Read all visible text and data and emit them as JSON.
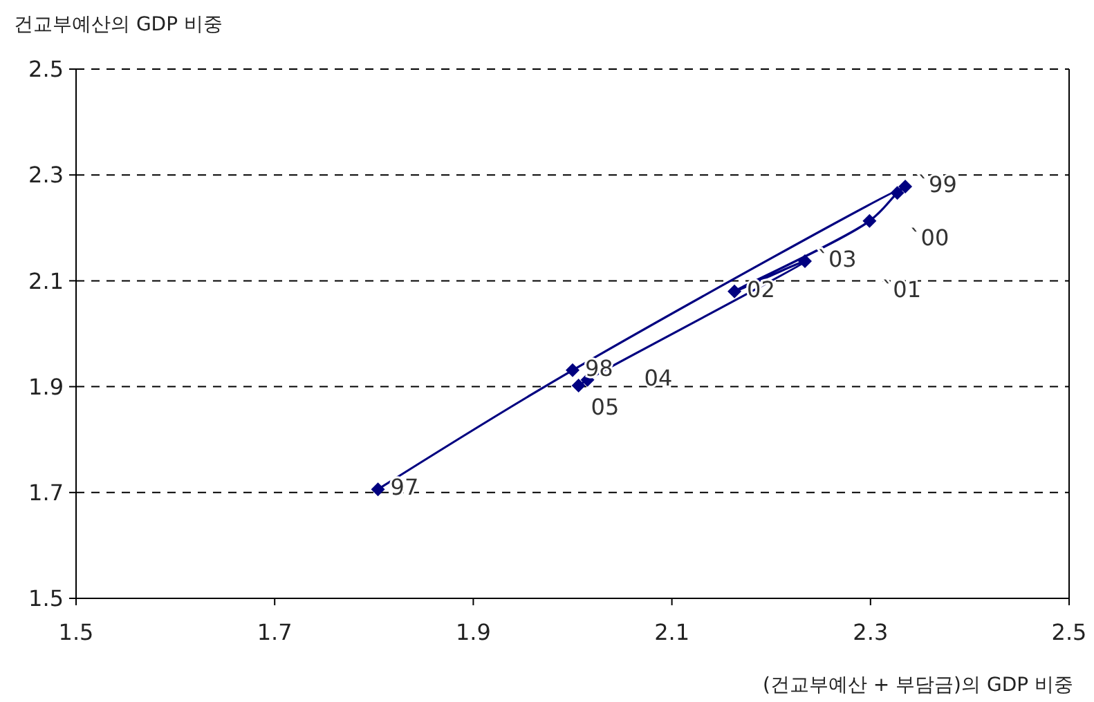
{
  "chart_data": {
    "type": "line",
    "ylabel": "건교부예산의 GDP 비중",
    "xlabel": "(건교부예산 + 부담금)의 GDP 비중",
    "x": [
      1.804,
      2.0,
      2.335,
      2.327,
      2.299,
      2.163,
      2.234,
      2.015,
      2.006
    ],
    "series": [
      {
        "color": "#000080",
        "values": [
          1.706,
          1.931,
          2.278,
          2.266,
          2.213,
          2.08,
          2.137,
          1.913,
          1.902
        ]
      }
    ],
    "xlim": [
      1.5,
      2.5
    ],
    "xticks": [
      1.5,
      1.7,
      1.9,
      2.1,
      2.3,
      2.5
    ],
    "ylim": [
      1.5,
      2.5
    ],
    "yticks": [
      1.5,
      1.7,
      1.9,
      2.1,
      2.3,
      2.5
    ],
    "grid": "y",
    "marker": "diamond",
    "line_style": "solid",
    "annotations": [
      {
        "text": "97",
        "x": 1.804,
        "y": 1.706
      },
      {
        "text": "98",
        "x": 2.0,
        "y": 1.931
      },
      {
        "text": "`99",
        "x": 2.335,
        "y": 2.278
      },
      {
        "text": "`00",
        "x": 2.327,
        "y": 2.266
      },
      {
        "text": "`01",
        "x": 2.299,
        "y": 2.213
      },
      {
        "text": "02",
        "x": 2.163,
        "y": 2.08
      },
      {
        "text": "`03",
        "x": 2.234,
        "y": 2.137
      },
      {
        "text": "04",
        "x": 2.015,
        "y": 1.913
      },
      {
        "text": "05",
        "x": 2.006,
        "y": 1.902
      }
    ]
  }
}
